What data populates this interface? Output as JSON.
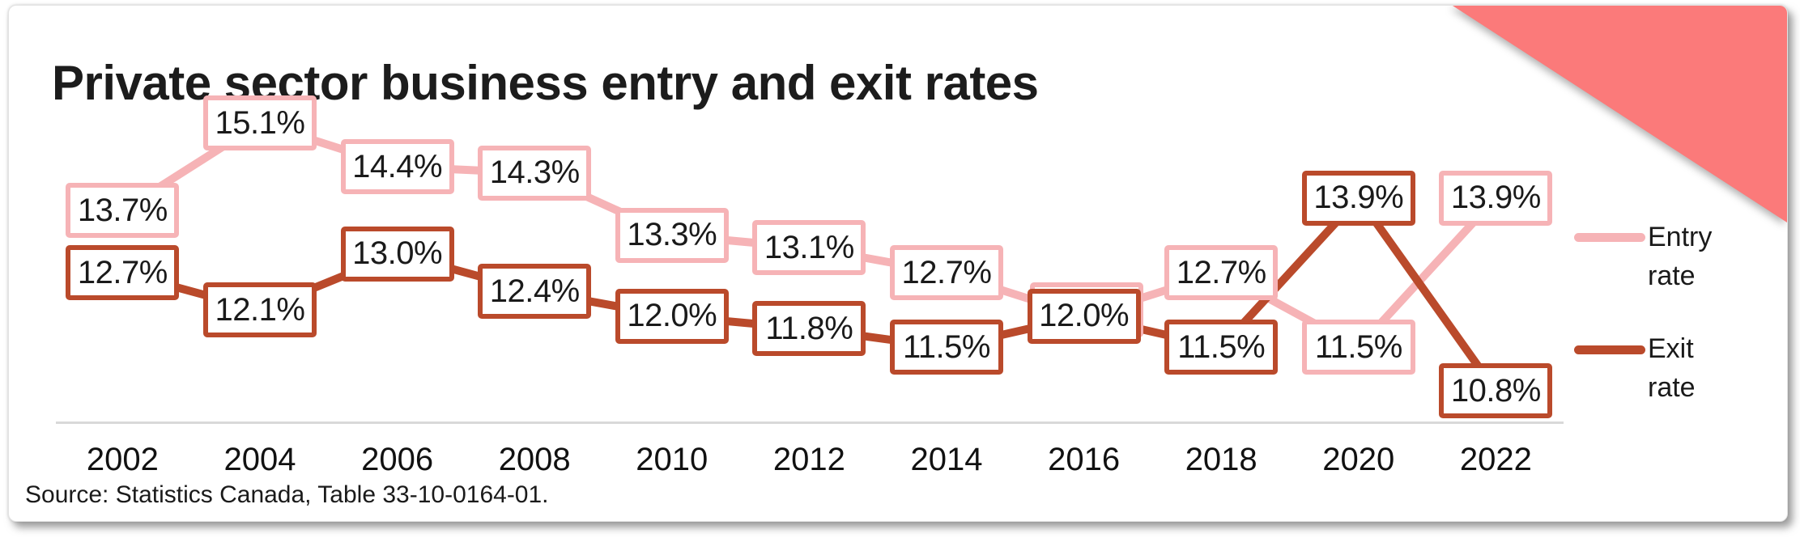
{
  "page": {
    "title": "Private sector business entry and exit rates",
    "source": "Source: Statistics Canada, Table 33-10-0164-01."
  },
  "colors": {
    "entry": "#F6B3B6",
    "exit": "#BA4A2B",
    "corner_triangle": "#FB7A7A",
    "axis_line": "#D9D9D9",
    "box_fill": "#FFFFFF",
    "text": "#1A1A1A"
  },
  "legend": {
    "entry_label": "Entry rate",
    "exit_label": "Exit rate"
  },
  "chart_data": {
    "type": "line",
    "title": "Private sector business entry and exit rates",
    "source": "Source: Statistics Canada, Table 33-10-0164-01.",
    "x": [
      2002,
      2004,
      2006,
      2008,
      2010,
      2012,
      2014,
      2016,
      2018,
      2020,
      2022
    ],
    "x_tick_labels": [
      "2002",
      "2004",
      "2006",
      "2008",
      "2010",
      "2012",
      "2014",
      "2016",
      "2018",
      "2020",
      "2022"
    ],
    "series": [
      {
        "name": "Entry rate",
        "role": "entry",
        "values": [
          13.7,
          15.1,
          14.4,
          14.3,
          13.3,
          13.1,
          12.7,
          12.0,
          12.7,
          11.5,
          13.9
        ],
        "point_labels": [
          "13.7%",
          "15.1%",
          "14.4%",
          "14.3%",
          "13.3%",
          "13.1%",
          "12.7%",
          "12.0%",
          "12.7%",
          "11.5%",
          "13.9%"
        ]
      },
      {
        "name": "Exit rate",
        "role": "exit",
        "values": [
          12.7,
          12.1,
          13.0,
          12.4,
          12.0,
          11.8,
          11.5,
          12.0,
          11.5,
          13.9,
          10.8
        ],
        "point_labels": [
          "12.7%",
          "12.1%",
          "13.0%",
          "12.4%",
          "12.0%",
          "11.8%",
          "11.5%",
          "12.0%",
          "11.5%",
          "13.9%",
          "10.8%"
        ]
      }
    ],
    "shared_label_year": 2016,
    "ylim": [
      10.5,
      15.5
    ],
    "grid": false,
    "legend_position": "right",
    "label_style": "boxed data labels on every point"
  }
}
